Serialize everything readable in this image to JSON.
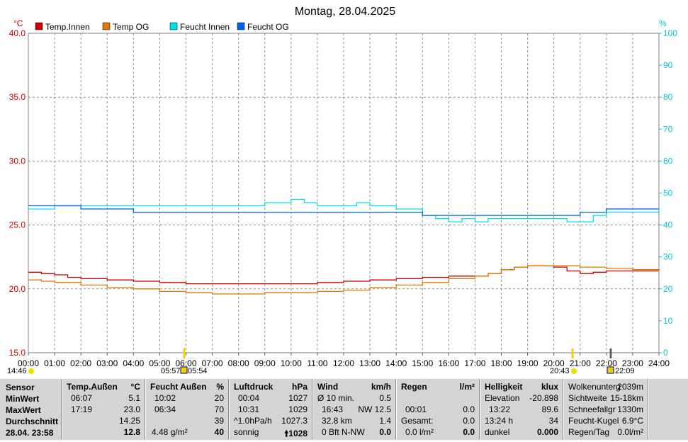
{
  "chart_data": {
    "type": "line",
    "title": "Montag, 28.04.2025",
    "y_left_unit": "°C",
    "y_right_unit": "%",
    "ylim_left": [
      15,
      40
    ],
    "ylim_right": [
      0,
      100
    ],
    "y_left_ticks": [
      "40.0",
      "35.0",
      "30.0",
      "25.0",
      "20.0",
      "15.0"
    ],
    "y_right_ticks": [
      "100",
      "90",
      "80",
      "70",
      "60",
      "50",
      "40",
      "30",
      "20",
      "10",
      "0"
    ],
    "x_ticks": [
      "00:00",
      "01:00",
      "02:00",
      "03:00",
      "04:00",
      "05:00",
      "06:00",
      "07:00",
      "08:00",
      "09:00",
      "10:00",
      "11:00",
      "12:00",
      "13:00",
      "14:00",
      "15:00",
      "16:00",
      "17:00",
      "18:00",
      "19:00",
      "20:00",
      "21:00",
      "22:00",
      "23:00",
      "24:00"
    ],
    "xlim": [
      0,
      24
    ],
    "grid": true,
    "legend_placement": "top-left",
    "series": [
      {
        "name": "Temp.Innen",
        "axis": "left",
        "color": "#cc0000",
        "x": [
          0,
          0.5,
          1,
          1.5,
          2,
          3,
          4,
          5,
          6,
          7,
          8,
          9,
          10,
          11,
          12,
          13,
          14,
          15,
          16,
          17,
          17.5,
          18,
          18.5,
          19,
          19.5,
          20,
          20.5,
          21,
          21.5,
          22,
          23,
          24
        ],
        "y": [
          21.3,
          21.2,
          21.1,
          20.9,
          20.8,
          20.7,
          20.6,
          20.5,
          20.4,
          20.4,
          20.4,
          20.4,
          20.4,
          20.5,
          20.6,
          20.7,
          20.8,
          20.9,
          21.0,
          21.0,
          21.2,
          21.5,
          21.7,
          21.8,
          21.8,
          21.7,
          21.4,
          21.2,
          21.3,
          21.4,
          21.4,
          21.4
        ]
      },
      {
        "name": "Temp OG",
        "axis": "left",
        "color": "#e07800",
        "x": [
          0,
          0.5,
          1,
          2,
          3,
          4,
          5,
          6,
          7,
          8,
          9,
          10,
          11,
          12,
          13,
          14,
          15,
          16,
          17,
          17.5,
          18,
          18.5,
          19,
          19.5,
          20,
          21,
          22,
          23,
          24
        ],
        "y": [
          20.7,
          20.6,
          20.5,
          20.3,
          20.1,
          20.0,
          19.8,
          19.7,
          19.6,
          19.6,
          19.7,
          19.7,
          19.8,
          19.9,
          20.1,
          20.3,
          20.5,
          20.8,
          21.0,
          21.2,
          21.5,
          21.7,
          21.8,
          21.8,
          21.8,
          21.7,
          21.6,
          21.5,
          21.3
        ]
      },
      {
        "name": "Feucht Innen",
        "axis": "right",
        "color": "#00e0e8",
        "x": [
          0,
          1,
          2,
          3,
          4,
          5,
          6,
          7,
          8,
          8.9,
          9,
          10,
          10.5,
          11,
          12,
          12.5,
          13,
          13.5,
          14,
          14.5,
          15,
          15.5,
          16,
          16.5,
          17,
          17.5,
          18,
          19,
          20,
          20.5,
          21,
          21.5,
          22,
          23,
          24
        ],
        "y": [
          45,
          46,
          46,
          46,
          46,
          46,
          46,
          46,
          46,
          46,
          47,
          48,
          47,
          46,
          46,
          47,
          46,
          46,
          45,
          45,
          43,
          42,
          41,
          42,
          41,
          42,
          42,
          42,
          42,
          41,
          41,
          43,
          44,
          44,
          45
        ]
      },
      {
        "name": "Feucht OG",
        "axis": "right",
        "color": "#0060f0",
        "x": [
          0,
          1,
          2,
          3,
          4,
          5,
          6,
          7,
          8,
          9,
          10,
          11,
          12,
          13,
          14,
          15,
          16,
          17,
          18,
          19,
          20,
          21,
          22,
          23,
          24
        ],
        "y": [
          46,
          46,
          45,
          45,
          44,
          44,
          44,
          44,
          44,
          44,
          44,
          44,
          44,
          44,
          44,
          43,
          43,
          43,
          43,
          43,
          43,
          44,
          45,
          45,
          45
        ]
      }
    ]
  },
  "sun_markers": {
    "sunrise_before": "05:57",
    "sunrise": "05:54",
    "sunset": "20:43",
    "sunset_after": "22:09",
    "now": "14:46"
  },
  "table": {
    "sensor": {
      "header": "Sensor",
      "min": "MinWert",
      "max": "MaxWert",
      "avg": "Durchschnitt",
      "now": "28.04. 23:58"
    },
    "temp": {
      "header": "Temp.Außen",
      "unit": "°C",
      "min_time": "06:07",
      "min_val": "5.1",
      "max_time": "17:19",
      "max_val": "23.0",
      "avg": "14.25",
      "now": "12.8"
    },
    "feucht": {
      "header": "Feucht Außen",
      "unit": "%",
      "min_time": "10:02",
      "min_val": "20",
      "max_time": "06:34",
      "max_val": "70",
      "avg": "39",
      "abs": "4.48 g/m²",
      "now": "40"
    },
    "luft": {
      "header": "Luftdruck",
      "unit": "hPa",
      "min_time": "00:04",
      "min_val": "1027",
      "max_time": "10:31",
      "max_val": "1029",
      "trend_label": "^1.0hPa/h",
      "trend_val": "1027.3",
      "desc": "sonnig",
      "now": "1028"
    },
    "wind": {
      "header": "Wind",
      "unit": "km/h",
      "r1_label": "Ø 10 min.",
      "r1_val": "0.5",
      "r2_time": "16:43",
      "r2_val": "NW 12.5",
      "r3_label": "32.8 km",
      "r3_val": "1.4",
      "r4_label": "0 Bft N-NW",
      "now": "0.0"
    },
    "regen": {
      "header": "Regen",
      "unit": "l/m²",
      "r2_time": "00:01",
      "r2_val": "0.0",
      "r3_label": "Gesamt:",
      "r3_val": "0.0",
      "r4_label": "0.0 l/m²",
      "now": "0.0"
    },
    "hell": {
      "header": "Helligkeit",
      "unit": "klux",
      "r1_label": "Elevation",
      "r1_val": "-20.898",
      "r2_time": "13:22",
      "r2_val": "89.6",
      "r3_label": "13:24 h",
      "r3_val": "34",
      "r4_label": "dunkel",
      "now": "0.000"
    },
    "extra": {
      "r0_label": "Wolkenunterg",
      "r0_val": "2039m",
      "r1_label": "Sichtweite",
      "r1_val": "15-18km",
      "r2_label": "Schneefallgr",
      "r2_val": "1330m",
      "r3_label": "Feucht-Kugel",
      "r3_val": "6.9°C",
      "r4_label": "Regen/Tag",
      "r4_val": "0.0l/m²"
    }
  }
}
